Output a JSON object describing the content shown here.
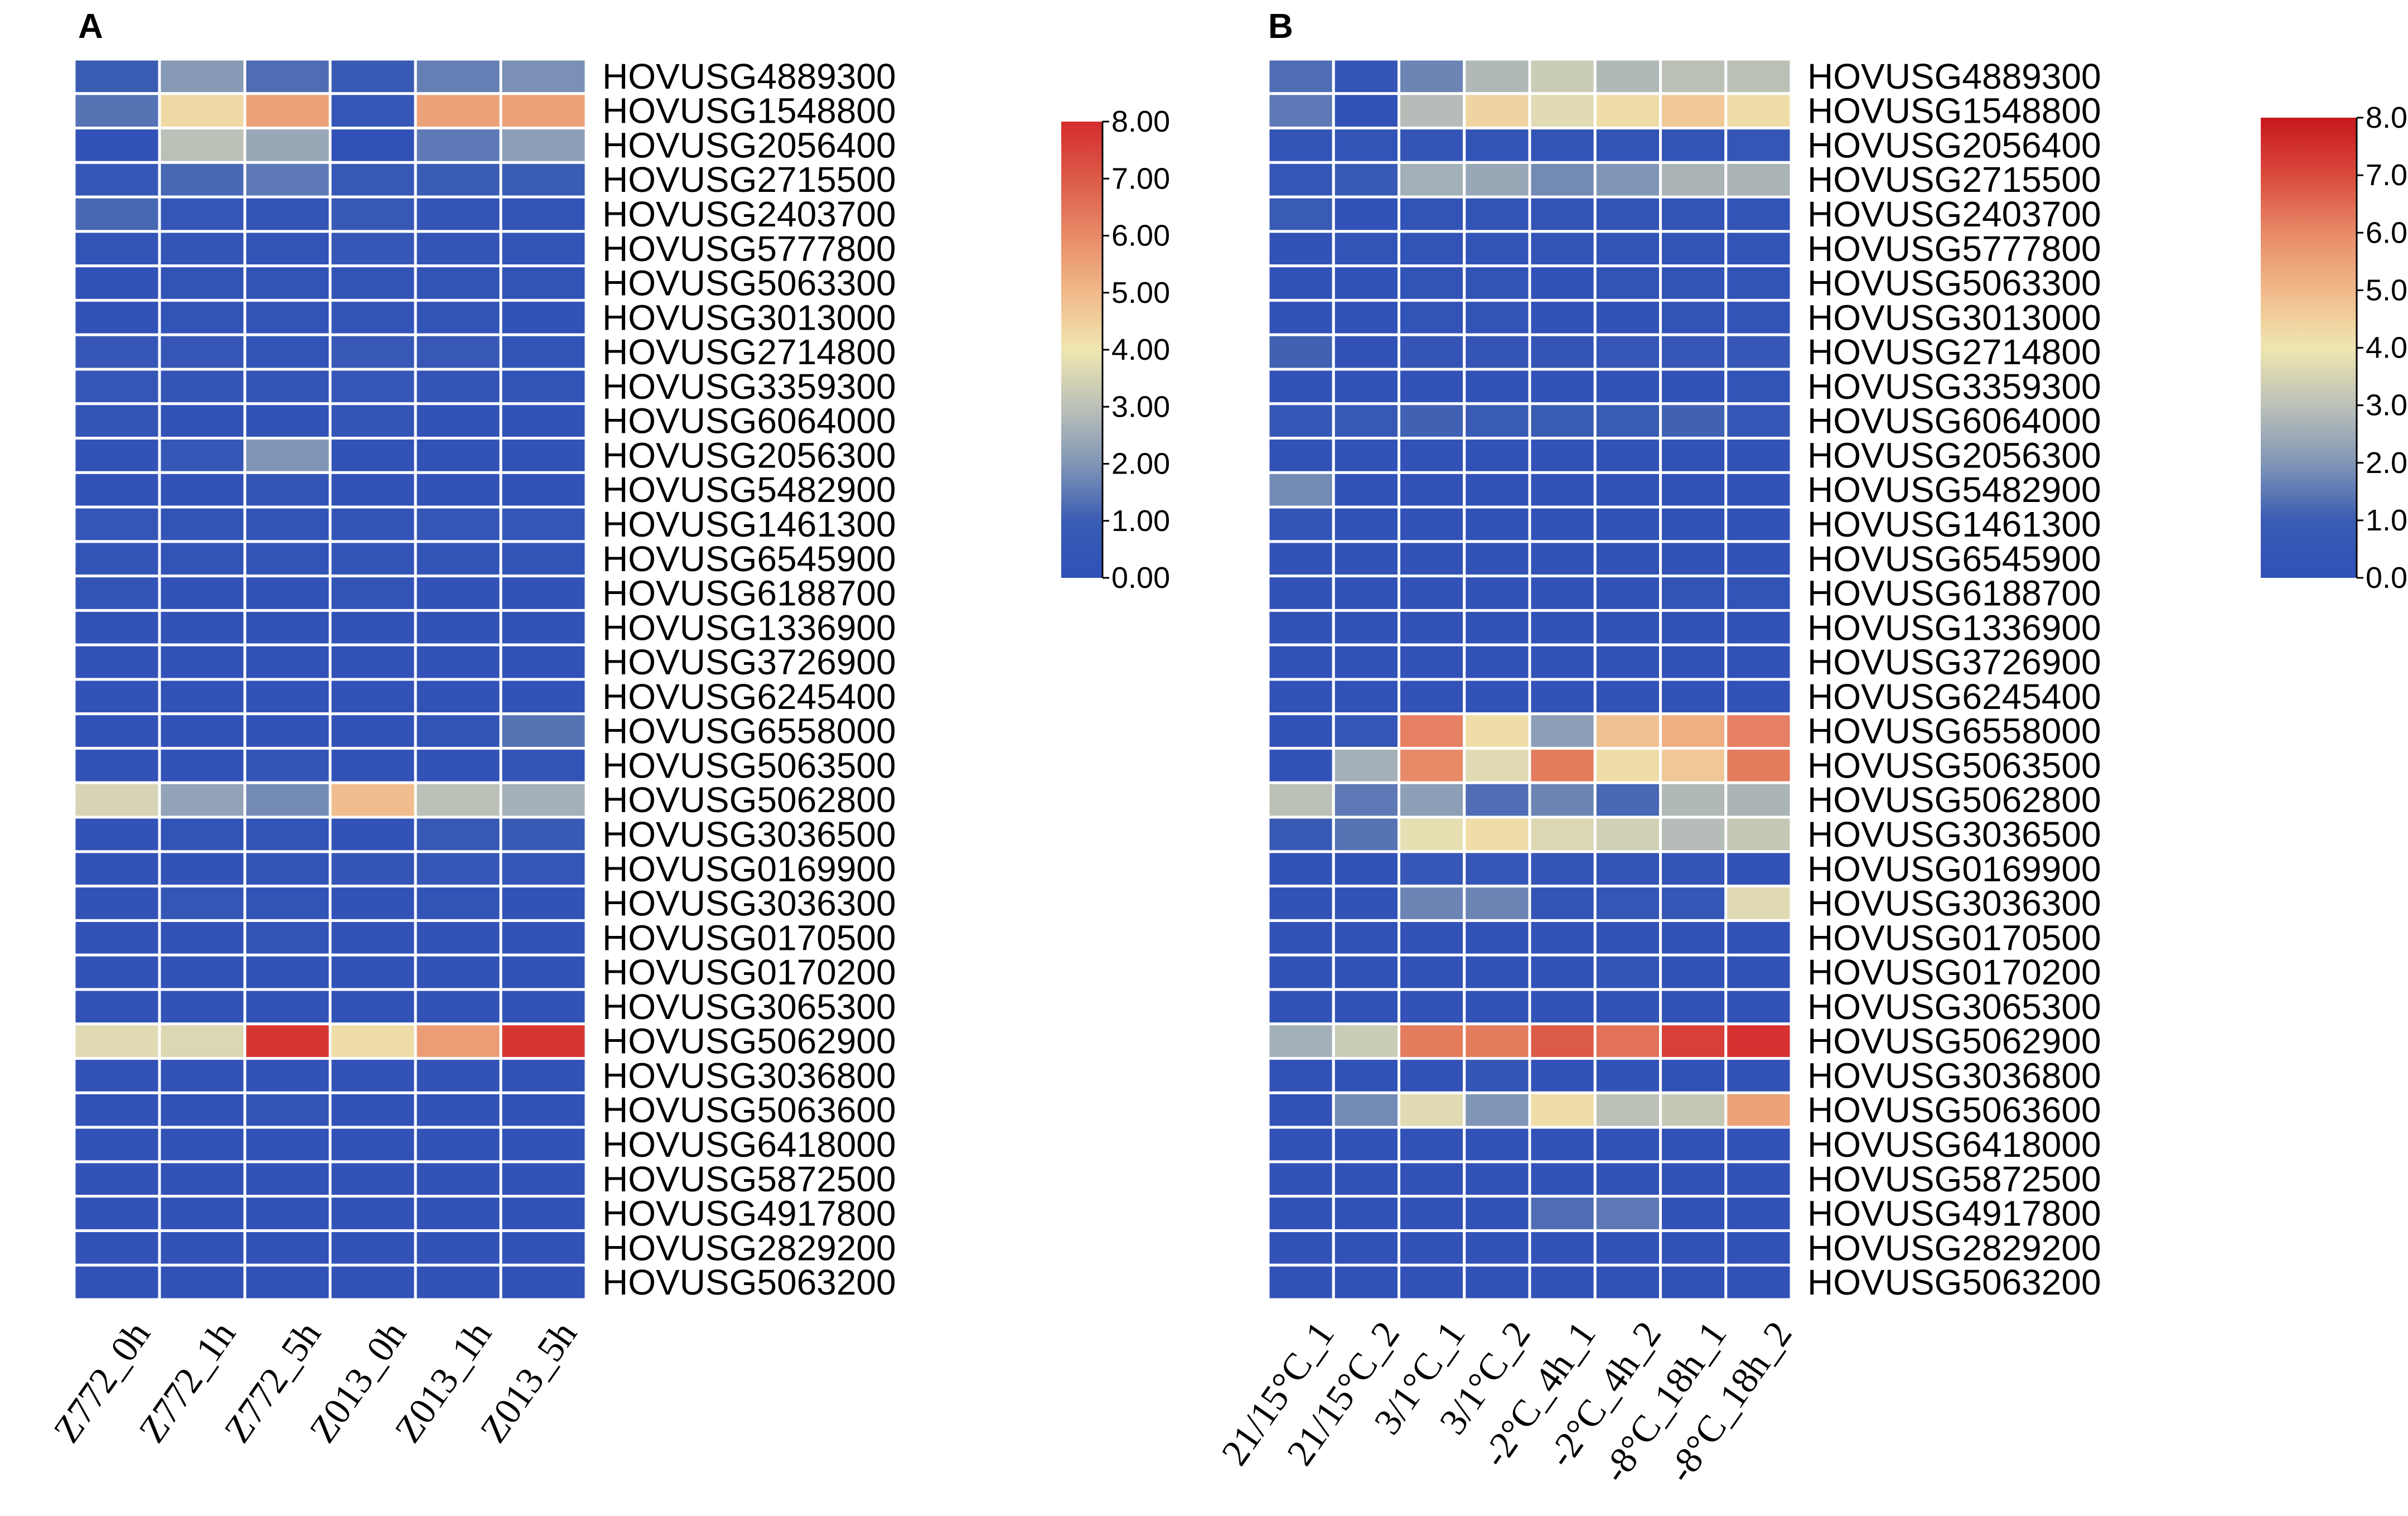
{
  "chart_data": [
    {
      "type": "heatmap",
      "panel": "A",
      "columns": [
        "Z772_0h",
        "Z772_1h",
        "Z772_5h",
        "Z013_0h",
        "Z013_1h",
        "Z013_5h"
      ],
      "rows": [
        "HOVUSG4889300",
        "HOVUSG1548800",
        "HOVUSG2056400",
        "HOVUSG2715500",
        "HOVUSG2403700",
        "HOVUSG5777800",
        "HOVUSG5063300",
        "HOVUSG3013000",
        "HOVUSG2714800",
        "HOVUSG3359300",
        "HOVUSG6064000",
        "HOVUSG2056300",
        "HOVUSG5482900",
        "HOVUSG1461300",
        "HOVUSG6545900",
        "HOVUSG6188700",
        "HOVUSG1336900",
        "HOVUSG3726900",
        "HOVUSG6245400",
        "HOVUSG6558000",
        "HOVUSG5063500",
        "HOVUSG5062800",
        "HOVUSG3036500",
        "HOVUSG0169900",
        "HOVUSG3036300",
        "HOVUSG0170500",
        "HOVUSG0170200",
        "HOVUSG3065300",
        "HOVUSG5062900",
        "HOVUSG3036800",
        "HOVUSG5063600",
        "HOVUSG6418000",
        "HOVUSG5872500",
        "HOVUSG4917800",
        "HOVUSG2829200",
        "HOVUSG5063200"
      ],
      "values": [
        [
          1.0,
          2.1,
          1.3,
          0.8,
          1.6,
          1.9
        ],
        [
          1.4,
          4.3,
          5.5,
          0.5,
          5.5,
          5.5
        ],
        [
          0.2,
          3.0,
          2.4,
          0.1,
          1.5,
          2.2
        ],
        [
          0.6,
          1.2,
          1.5,
          0.7,
          1.0,
          1.0
        ],
        [
          1.2,
          0.5,
          0.4,
          0.7,
          0.4,
          0.3
        ],
        [
          0.3,
          0.4,
          0.3,
          0.6,
          0.4,
          0.3
        ],
        [
          0.2,
          0.3,
          0.3,
          0.3,
          0.3,
          0.3
        ],
        [
          0.2,
          0.3,
          0.3,
          0.3,
          0.3,
          0.2
        ],
        [
          0.6,
          0.5,
          0.3,
          0.7,
          0.7,
          0.3
        ],
        [
          0.5,
          0.4,
          0.4,
          0.5,
          0.4,
          0.3
        ],
        [
          0.4,
          0.2,
          0.2,
          0.4,
          0.2,
          0.2
        ],
        [
          0.2,
          0.6,
          2.0,
          0.2,
          0.2,
          0.2
        ],
        [
          0.2,
          0.2,
          0.3,
          0.2,
          0.2,
          0.2
        ],
        [
          0.5,
          0.3,
          0.3,
          0.3,
          0.5,
          0.5
        ],
        [
          0.3,
          0.3,
          0.3,
          0.3,
          0.3,
          0.3
        ],
        [
          0.3,
          0.2,
          0.2,
          0.3,
          0.2,
          0.2
        ],
        [
          0.2,
          0.2,
          0.2,
          0.2,
          0.2,
          0.2
        ],
        [
          0.2,
          0.2,
          0.2,
          0.2,
          0.2,
          0.2
        ],
        [
          0.2,
          0.2,
          0.2,
          0.2,
          0.2,
          0.2
        ],
        [
          0.2,
          0.2,
          0.2,
          0.2,
          0.3,
          1.4
        ],
        [
          0.2,
          0.2,
          0.4,
          0.2,
          0.2,
          0.3
        ],
        [
          3.5,
          2.3,
          1.8,
          4.9,
          3.0,
          2.6
        ],
        [
          0.2,
          0.3,
          0.3,
          0.2,
          0.7,
          0.8
        ],
        [
          0.2,
          0.2,
          0.3,
          0.4,
          0.6,
          0.5
        ],
        [
          0.2,
          0.5,
          0.3,
          0.2,
          0.3,
          0.2
        ],
        [
          0.2,
          0.2,
          0.3,
          0.2,
          0.2,
          0.2
        ],
        [
          0.2,
          0.2,
          0.2,
          0.2,
          0.2,
          0.2
        ],
        [
          0.2,
          0.2,
          0.2,
          0.2,
          0.2,
          0.2
        ],
        [
          3.7,
          3.6,
          7.8,
          4.2,
          5.6,
          7.8
        ],
        [
          0.2,
          0.2,
          0.2,
          0.2,
          0.2,
          0.2
        ],
        [
          0.2,
          0.2,
          0.4,
          0.2,
          0.2,
          0.2
        ],
        [
          0.2,
          0.2,
          0.2,
          0.2,
          0.2,
          0.2
        ],
        [
          0.2,
          0.2,
          0.2,
          0.2,
          0.2,
          0.2
        ],
        [
          0.2,
          0.2,
          0.2,
          0.2,
          0.2,
          0.2
        ],
        [
          0.2,
          0.2,
          0.2,
          0.2,
          0.2,
          0.2
        ],
        [
          0.2,
          0.2,
          0.2,
          0.2,
          0.2,
          0.2
        ]
      ],
      "colorbar": {
        "min": 0,
        "max": 8,
        "ticks": [
          "0.00",
          "1.00",
          "2.00",
          "3.00",
          "4.00",
          "5.00",
          "6.00",
          "7.00",
          "8.00"
        ]
      }
    },
    {
      "type": "heatmap",
      "panel": "B",
      "columns": [
        "21/15°C_1",
        "21/15°C_2",
        "3/1°C_1",
        "3/1°C_2",
        "-2°C_4h_1",
        "-2°C_4h_2",
        "-8°C_18h_1",
        "-8°C_18h_2"
      ],
      "rows": [
        "HOVUSG4889300",
        "HOVUSG1548800",
        "HOVUSG2056400",
        "HOVUSG2715500",
        "HOVUSG2403700",
        "HOVUSG5777800",
        "HOVUSG5063300",
        "HOVUSG3013000",
        "HOVUSG2714800",
        "HOVUSG3359300",
        "HOVUSG6064000",
        "HOVUSG2056300",
        "HOVUSG5482900",
        "HOVUSG1461300",
        "HOVUSG6545900",
        "HOVUSG6188700",
        "HOVUSG1336900",
        "HOVUSG3726900",
        "HOVUSG6245400",
        "HOVUSG6558000",
        "HOVUSG5063500",
        "HOVUSG5062800",
        "HOVUSG3036500",
        "HOVUSG0169900",
        "HOVUSG3036300",
        "HOVUSG0170500",
        "HOVUSG0170200",
        "HOVUSG3065300",
        "HOVUSG5062900",
        "HOVUSG3036800",
        "HOVUSG5063600",
        "HOVUSG6418000",
        "HOVUSG5872500",
        "HOVUSG4917800",
        "HOVUSG2829200",
        "HOVUSG5063200"
      ],
      "values": [
        [
          1.3,
          0.4,
          1.7,
          2.8,
          3.3,
          2.8,
          3.0,
          3.0
        ],
        [
          1.5,
          0.2,
          2.9,
          4.4,
          3.7,
          4.2,
          4.7,
          4.2
        ],
        [
          0.3,
          0.3,
          0.4,
          0.3,
          0.3,
          0.3,
          0.3,
          0.5
        ],
        [
          0.5,
          0.8,
          2.6,
          2.4,
          1.8,
          2.0,
          2.7,
          2.7
        ],
        [
          0.9,
          0.2,
          0.3,
          0.3,
          0.3,
          0.3,
          0.3,
          0.3
        ],
        [
          0.2,
          0.3,
          0.3,
          0.3,
          0.3,
          0.3,
          0.3,
          0.3
        ],
        [
          0.2,
          0.2,
          0.3,
          0.3,
          0.2,
          0.3,
          0.3,
          0.3
        ],
        [
          0.2,
          0.2,
          0.3,
          0.3,
          0.2,
          0.2,
          0.3,
          0.3
        ],
        [
          1.1,
          0.2,
          0.4,
          0.4,
          0.4,
          0.5,
          0.5,
          0.6
        ],
        [
          0.2,
          0.2,
          0.2,
          0.2,
          0.2,
          0.2,
          0.2,
          0.3
        ],
        [
          0.6,
          0.7,
          1.1,
          0.9,
          1.0,
          0.9,
          1.1,
          0.6
        ],
        [
          0.2,
          0.2,
          0.2,
          0.2,
          0.2,
          0.2,
          0.2,
          0.2
        ],
        [
          1.8,
          0.2,
          0.2,
          0.2,
          0.2,
          0.2,
          0.2,
          0.2
        ],
        [
          0.3,
          0.2,
          0.2,
          0.2,
          0.2,
          0.2,
          0.2,
          0.2
        ],
        [
          0.2,
          0.2,
          0.2,
          0.2,
          0.2,
          0.2,
          0.2,
          0.2
        ],
        [
          0.2,
          0.2,
          0.2,
          0.2,
          0.2,
          0.2,
          0.3,
          0.3
        ],
        [
          0.2,
          0.2,
          0.2,
          0.2,
          0.2,
          0.2,
          0.2,
          0.2
        ],
        [
          0.2,
          0.2,
          0.2,
          0.2,
          0.2,
          0.2,
          0.2,
          0.2
        ],
        [
          0.2,
          0.2,
          0.2,
          0.2,
          0.2,
          0.2,
          0.2,
          0.2
        ],
        [
          0.2,
          0.5,
          6.2,
          4.2,
          2.2,
          4.8,
          5.2,
          6.2
        ],
        [
          0.2,
          2.6,
          6.0,
          3.7,
          6.3,
          4.2,
          4.7,
          6.3
        ],
        [
          3.0,
          1.5,
          2.2,
          1.3,
          1.7,
          1.2,
          2.8,
          2.7
        ],
        [
          0.8,
          1.4,
          3.8,
          4.2,
          3.6,
          3.4,
          2.9,
          3.2
        ],
        [
          0.2,
          0.2,
          0.6,
          0.5,
          0.4,
          0.4,
          0.4,
          0.2
        ],
        [
          0.2,
          0.2,
          1.7,
          1.7,
          0.4,
          0.5,
          0.6,
          3.7
        ],
        [
          0.2,
          0.2,
          0.2,
          0.2,
          0.2,
          0.2,
          0.2,
          0.2
        ],
        [
          0.2,
          0.2,
          0.2,
          0.2,
          0.2,
          0.4,
          0.2,
          0.2
        ],
        [
          0.2,
          0.2,
          0.2,
          0.2,
          0.2,
          0.2,
          0.2,
          0.2
        ],
        [
          2.6,
          3.3,
          6.3,
          6.3,
          7.0,
          6.5,
          7.6,
          7.9
        ],
        [
          0.2,
          0.2,
          0.2,
          0.4,
          0.2,
          0.2,
          0.2,
          0.2
        ],
        [
          0.2,
          1.8,
          3.7,
          2.0,
          4.2,
          3.0,
          3.2,
          5.5
        ],
        [
          0.2,
          0.2,
          0.2,
          0.2,
          0.2,
          0.2,
          0.2,
          0.2
        ],
        [
          0.2,
          0.2,
          0.2,
          0.2,
          0.2,
          0.2,
          0.2,
          0.2
        ],
        [
          0.2,
          0.2,
          0.2,
          0.2,
          1.3,
          1.5,
          0.2,
          0.2
        ],
        [
          0.2,
          0.2,
          0.2,
          0.2,
          0.2,
          0.2,
          0.2,
          0.2
        ],
        [
          0.2,
          0.2,
          0.2,
          0.2,
          0.2,
          0.2,
          0.2,
          0.2
        ]
      ],
      "colorbar": {
        "min": 0,
        "max": 8,
        "ticks": [
          "0.00",
          "1.00",
          "2.00",
          "3.00",
          "4.00",
          "5.00",
          "6.00",
          "7.00",
          "8.00"
        ]
      }
    }
  ],
  "colors": {
    "low": "#3a5cb3",
    "mid": "#efe6b0",
    "high": "#d42d2d",
    "grid": "#ffffff",
    "text": "#000000"
  }
}
